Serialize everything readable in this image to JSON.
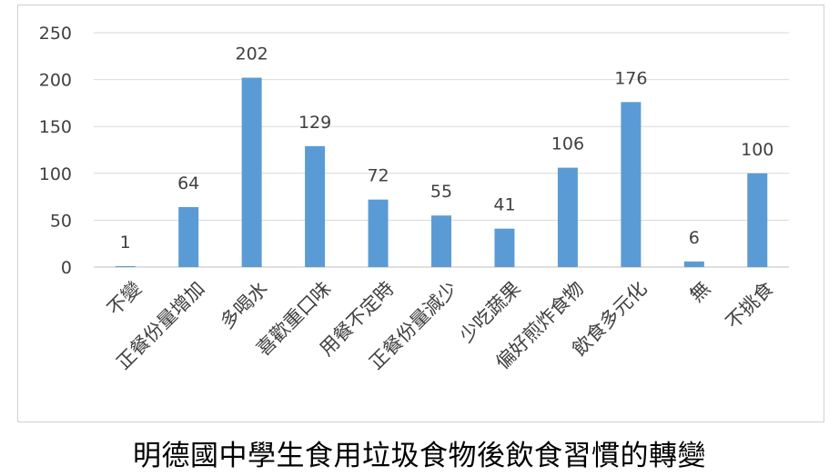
{
  "caption": "明德國中學生食用垃圾食物後飲食習慣的轉變",
  "chart_data": {
    "type": "bar",
    "categories": [
      "不變",
      "正餐份量增加",
      "多喝水",
      "喜歡重口味",
      "用餐不定時",
      "正餐份量減少",
      "少吃蔬果",
      "偏好煎炸食物",
      "飲食多元化",
      "無",
      "不挑食"
    ],
    "values": [
      1,
      64,
      202,
      129,
      72,
      55,
      41,
      106,
      176,
      6,
      100
    ],
    "ylim": [
      0,
      250
    ],
    "yticks": [
      0,
      50,
      100,
      150,
      200,
      250
    ],
    "grid": true,
    "data_labels": true,
    "bar_color": "#5b9bd5",
    "grid_color": "#d9d9d9",
    "axis_color": "#bfbfbf",
    "text_color": "#404040"
  }
}
